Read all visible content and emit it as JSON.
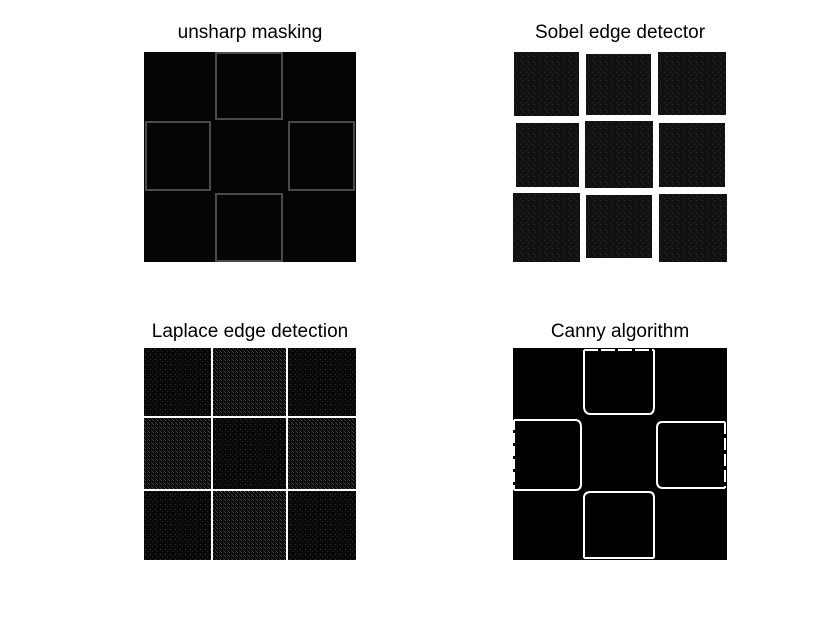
{
  "figure": {
    "panels": [
      {
        "id": "unsharp",
        "title": "unsharp masking"
      },
      {
        "id": "sobel",
        "title": "Sobel edge detector"
      },
      {
        "id": "laplace",
        "title": "Laplace edge detection"
      },
      {
        "id": "canny",
        "title": "Canny algorithm"
      }
    ]
  },
  "colors": {
    "background": "#ffffff",
    "image_background": "#000000",
    "edge_dim": "#6a6a6a",
    "edge_bright": "#ffffff",
    "noise": "#2a2a2a"
  }
}
